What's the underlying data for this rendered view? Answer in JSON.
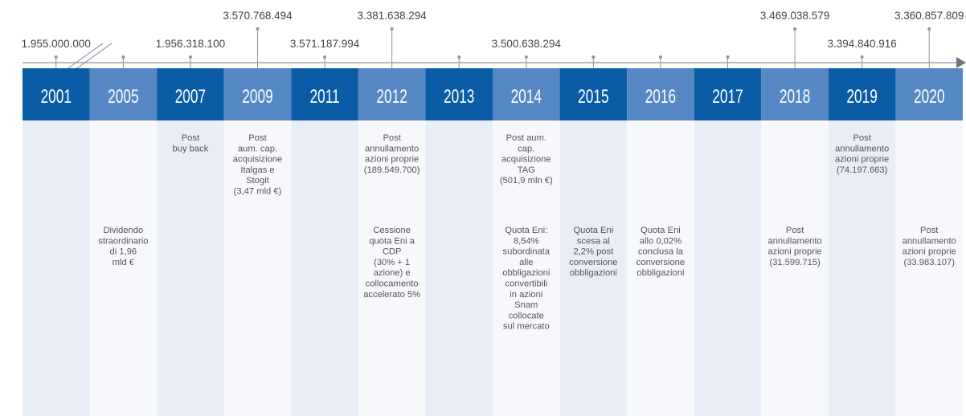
{
  "columns": [
    {
      "year": "2001",
      "shares": "1.955.000.000"
    },
    {
      "year": "2005",
      "bottom": [
        "Dividendo",
        "straordinario",
        "di 1,96",
        "mld €"
      ]
    },
    {
      "year": "2007",
      "shares": "1.956.318.100",
      "top": [
        "Post",
        "buy back"
      ]
    },
    {
      "year": "2009",
      "shares": "3.570.768.494",
      "top": [
        "Post",
        "aum. cap.",
        "acquisizione",
        "Italgas e",
        "Stogit",
        "(3,47 mld €)"
      ]
    },
    {
      "year": "2011",
      "shares": "3.571.187.994"
    },
    {
      "year": "2012",
      "shares": "3.381.638.294",
      "top": [
        "Post",
        "annullamento",
        "azioni proprie",
        "(189.549.700)"
      ],
      "bottom": [
        "Cessione",
        "quota Eni a",
        "CDP",
        "(30% + 1",
        "azione) e",
        "collocamento",
        "accelerato 5%"
      ]
    },
    {
      "year": "2013"
    },
    {
      "year": "2014",
      "shares": "3.500.638.294",
      "top": [
        "Post aum.",
        "cap.",
        "acquisizione",
        "TAG",
        "(501,9 mln €)"
      ],
      "bottom": [
        "Quota Eni:",
        "8,54%",
        "subordinata",
        "alle",
        "obbligazioni",
        "convertibili",
        "in azioni",
        "Snam",
        "collocate",
        "sul mercato"
      ]
    },
    {
      "year": "2015",
      "bottom": [
        "Quota Eni",
        "scesa al",
        "2,2% post",
        "conversione",
        "obbligazioni"
      ]
    },
    {
      "year": "2016",
      "bottom": [
        "Quota Eni",
        "allo 0,02%",
        "conclusa la",
        "conversione",
        "obbligazioni"
      ]
    },
    {
      "year": "2017"
    },
    {
      "year": "2018",
      "shares": "3.469.038.579",
      "bottom": [
        "Post",
        "annullamento",
        "azioni proprie",
        "(31.599.715)"
      ]
    },
    {
      "year": "2019",
      "shares": "3.394.840.916",
      "top": [
        "Post",
        "annullamento",
        "azioni proprie",
        "(74.197.663)"
      ]
    },
    {
      "year": "2020",
      "shares": "3.360.857.809",
      "bottom": [
        "Post",
        "annullamento",
        "azioni proprie",
        "(33.983.107)"
      ]
    }
  ]
}
